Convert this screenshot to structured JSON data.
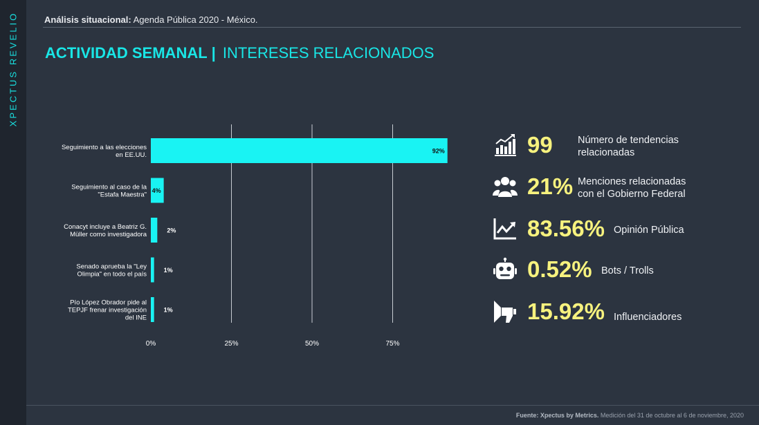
{
  "brand": "XPECTUS REVELIO",
  "header": {
    "label": "Análisis situacional:",
    "text": " Agenda Pública 2020 - México."
  },
  "title": {
    "main": "ACTIVIDAD SEMANAL",
    "separator": "|",
    "sub": "INTERESES RELACIONADOS"
  },
  "chart_data": {
    "type": "bar",
    "orientation": "horizontal",
    "categories": [
      "Seguimiento a las elecciones en EE.UU.",
      "Seguimiento al caso de la \"Estafa Maestra\"",
      "Conacyt incluye a Beatriz G. Müller como investigadora",
      "Senado aprueba la \"Ley Olimpia\" en todo el país",
      "Pío López Obrador pide al TEPJF frenar investigación del INE"
    ],
    "category_lines": [
      [
        "Seguimiento a las elecciones",
        "en EE.UU."
      ],
      [
        "Seguimiento al caso de la",
        "\"Estafa Maestra\""
      ],
      [
        "Conacyt incluye a Beatriz G.",
        "Müller como investigadora"
      ],
      [
        "Senado aprueba la \"Ley",
        "Olimpia\" en todo el país"
      ],
      [
        "Pío López Obrador pide al",
        "TEPJF frenar investigación",
        "del INE"
      ]
    ],
    "values": [
      92,
      4,
      2,
      1,
      1
    ],
    "value_labels": [
      "92%",
      "4%",
      "2%",
      "1%",
      "1%"
    ],
    "xlim": [
      0,
      100
    ],
    "xticks": [
      0,
      25,
      50,
      75
    ],
    "xtick_labels": [
      "0%",
      "25%",
      "50%",
      "75%"
    ],
    "grid": true,
    "bar_color": "#19f3f3"
  },
  "stats": [
    {
      "icon": "bar-chart-icon",
      "value": "99",
      "desc_lines": [
        "Número de tendencias",
        "relacionadas"
      ]
    },
    {
      "icon": "people-icon",
      "value": "21%",
      "desc_lines": [
        "Menciones relacionadas",
        "con el Gobierno Federal"
      ]
    },
    {
      "icon": "trend-chart-icon",
      "value": "83.56%",
      "desc_lines": [
        "Opinión Pública"
      ]
    },
    {
      "icon": "robot-icon",
      "value": "0.52%",
      "desc_lines": [
        "Bots / Trolls"
      ]
    },
    {
      "icon": "megaphone-icon",
      "value": "15.92%",
      "desc_lines": [
        "Influenciadores"
      ]
    }
  ],
  "footer": {
    "source_label": "Fuente: Xpectus by Metrics.",
    "source_text": " Medición del 31 de octubre al 6 de noviembre, 2020"
  }
}
